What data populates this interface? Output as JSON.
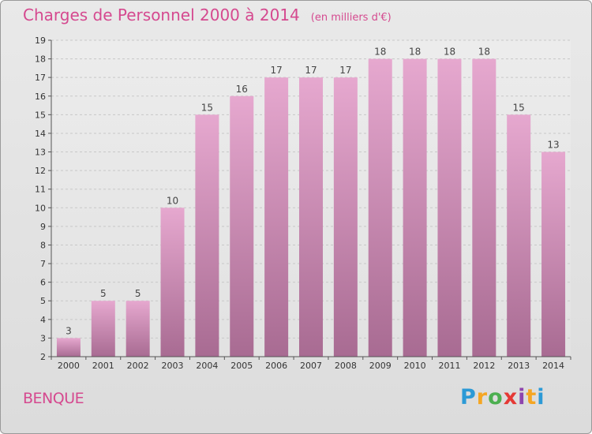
{
  "header": {
    "title": "Charges de Personnel 2000 à 2014",
    "subtitle": "(en milliers d'€)"
  },
  "footer": {
    "city": "BENQUE",
    "logo": "Proxiti"
  },
  "colors": {
    "title": "#d5498f",
    "bar_top": "#e6a8cf",
    "bar_bottom": "#a86b92",
    "background": "#e4e4e4"
  },
  "chart_data": {
    "type": "bar",
    "title": "Charges de Personnel 2000 à 2014",
    "subtitle": "(en milliers d'€)",
    "xlabel": "",
    "ylabel": "",
    "categories": [
      "2000",
      "2001",
      "2002",
      "2003",
      "2004",
      "2005",
      "2006",
      "2007",
      "2008",
      "2009",
      "2010",
      "2011",
      "2012",
      "2013",
      "2014"
    ],
    "values": [
      3,
      5,
      5,
      10,
      15,
      16,
      17,
      17,
      17,
      18,
      18,
      18,
      18,
      15,
      13
    ],
    "ylim": [
      2,
      19
    ],
    "yticks": [
      2,
      3,
      4,
      5,
      6,
      7,
      8,
      9,
      10,
      11,
      12,
      13,
      14,
      15,
      16,
      17,
      18,
      19
    ],
    "data_labels": true,
    "grid": true,
    "legend": "none"
  }
}
